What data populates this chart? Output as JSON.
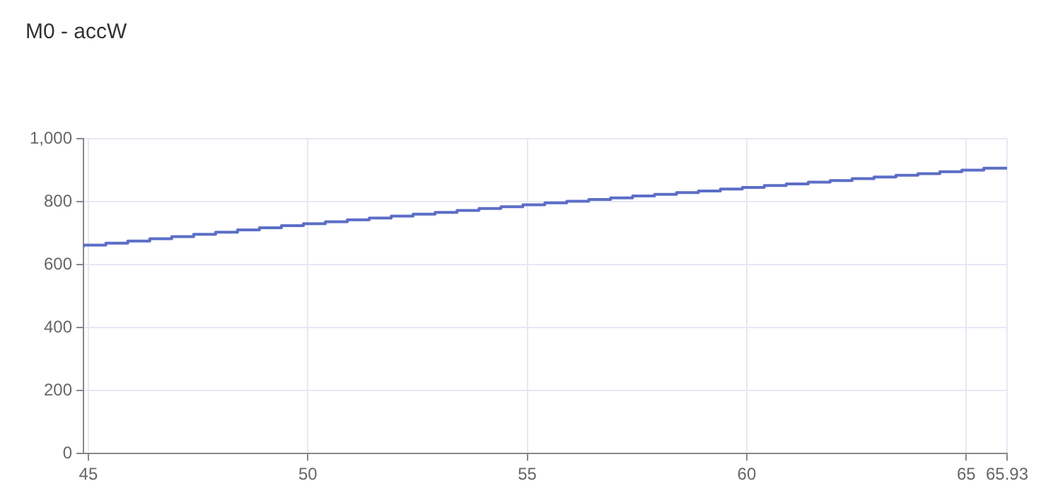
{
  "chart_data": {
    "type": "step",
    "title": "M0 - accW",
    "x": [
      44.89,
      45.4,
      45.9,
      46.4,
      46.9,
      47.4,
      47.9,
      48.4,
      48.9,
      49.4,
      49.9,
      50.4,
      50.9,
      51.4,
      51.9,
      52.4,
      52.9,
      53.4,
      53.9,
      54.4,
      54.9,
      55.4,
      55.9,
      56.4,
      56.9,
      57.4,
      57.9,
      58.4,
      58.9,
      59.4,
      59.9,
      60.4,
      60.9,
      61.4,
      61.9,
      62.4,
      62.9,
      63.4,
      63.9,
      64.4,
      64.9,
      65.4,
      65.93
    ],
    "series": [
      {
        "color": "#5b6ec6",
        "values": [
          655,
          662,
          668,
          675,
          682,
          689,
          696,
          703,
          710,
          717,
          724,
          730,
          736,
          742,
          748,
          754,
          760,
          766,
          772,
          778,
          784,
          790,
          796,
          801,
          807,
          812,
          818,
          823,
          829,
          834,
          840,
          845,
          851,
          856,
          862,
          867,
          873,
          878,
          884,
          889,
          895,
          900,
          906
        ]
      }
    ],
    "xlim": [
      44.89,
      65.93
    ],
    "xticks": [
      45,
      50,
      55,
      60,
      65,
      65.93
    ],
    "ylim": [
      0,
      1000
    ],
    "yticks": [
      0,
      200,
      400,
      600,
      800,
      {
        "value": 1000,
        "label": "1,000"
      }
    ],
    "grid": true,
    "legend": false,
    "marker": "none",
    "line_style": "solid"
  }
}
